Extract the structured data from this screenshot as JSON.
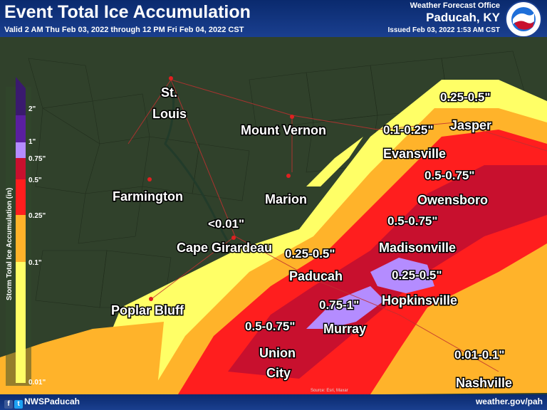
{
  "header": {
    "title": "Event Total Ice Accumulation",
    "valid": "Valid 2 AM Thu Feb 03, 2022 through 12 PM Fri Feb 04, 2022 CST",
    "office": "Weather Forecast Office",
    "city": "Paducah, KY",
    "issued": "Issued Feb 03, 2022 1:53 AM CST",
    "logo_text": "NATIONAL WEATHER SERVICE"
  },
  "legend": {
    "title": "Storm Total Ice Accumulation (in)",
    "ticks": [
      "2\"",
      "1\"",
      "0.75\"",
      "0.5\"",
      "0.25\"",
      "0.1\"",
      "0.01\""
    ],
    "colors": [
      "#3a1a6e",
      "#7a2bc4",
      "#b48cff",
      "#c8102e",
      "#ff1e1e",
      "#ffb32a",
      "#ffff66"
    ]
  },
  "places": {
    "st_louis": "St.\nLouis",
    "mount_vernon": "Mount Vernon",
    "farmington": "Farmington",
    "marion": "Marion",
    "cape_girardeau": "Cape Girardeau",
    "poplar_bluff": "Poplar Bluff",
    "paducah": "Paducah",
    "murray": "Murray",
    "union_city": "Union\nCity",
    "evansville": "Evansville",
    "jasper": "Jasper",
    "owensboro": "Owensboro",
    "madisonville": "Madisonville",
    "hopkinsville": "Hopkinsville",
    "nashville": "Nashville"
  },
  "amounts": {
    "a1": "<0.01\"",
    "a2": "0.25-0.5\"",
    "a3": "0.1-0.25\"",
    "a4": "0.25-0.5\"",
    "a5": "0.5-0.75\"",
    "a6": "0.5-0.75\"",
    "a7": "0.25-0.5\"",
    "a8": "0.75-1\"",
    "a9": "0.5-0.75\"",
    "a10": "0.01-0.1\""
  },
  "attribution": "Source: Esri, Maxar",
  "footer": {
    "social": "NWSPaducah",
    "site": "weather.gov/pah"
  }
}
